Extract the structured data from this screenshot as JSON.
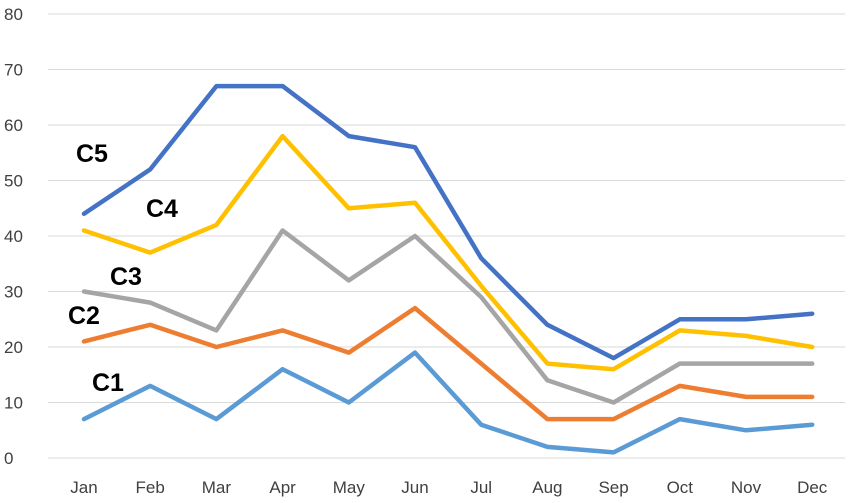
{
  "chart_data": {
    "type": "line",
    "categories": [
      "Jan",
      "Feb",
      "Mar",
      "Apr",
      "May",
      "Jun",
      "Jul",
      "Aug",
      "Sep",
      "Oct",
      "Nov",
      "Dec"
    ],
    "ylim": [
      0,
      80
    ],
    "yticks": [
      0,
      10,
      20,
      30,
      40,
      50,
      60,
      70,
      80
    ],
    "grid": true,
    "title": "",
    "xlabel": "",
    "ylabel": "",
    "series": [
      {
        "name": "C1",
        "color": "#5b9bd5",
        "values": [
          7,
          13,
          7,
          16,
          10,
          19,
          6,
          2,
          1,
          7,
          5,
          6
        ]
      },
      {
        "name": "C2",
        "color": "#ed7d31",
        "values": [
          21,
          24,
          20,
          23,
          19,
          27,
          17,
          7,
          7,
          13,
          11,
          11
        ]
      },
      {
        "name": "C3",
        "color": "#a5a5a5",
        "values": [
          30,
          28,
          23,
          41,
          32,
          40,
          29,
          14,
          10,
          17,
          17,
          17
        ]
      },
      {
        "name": "C4",
        "color": "#ffc000",
        "values": [
          41,
          37,
          42,
          58,
          45,
          46,
          31,
          17,
          16,
          23,
          22,
          20
        ]
      },
      {
        "name": "C5",
        "color": "#4472c4",
        "values": [
          44,
          52,
          67,
          67,
          58,
          56,
          36,
          24,
          18,
          25,
          25,
          26
        ]
      }
    ]
  }
}
